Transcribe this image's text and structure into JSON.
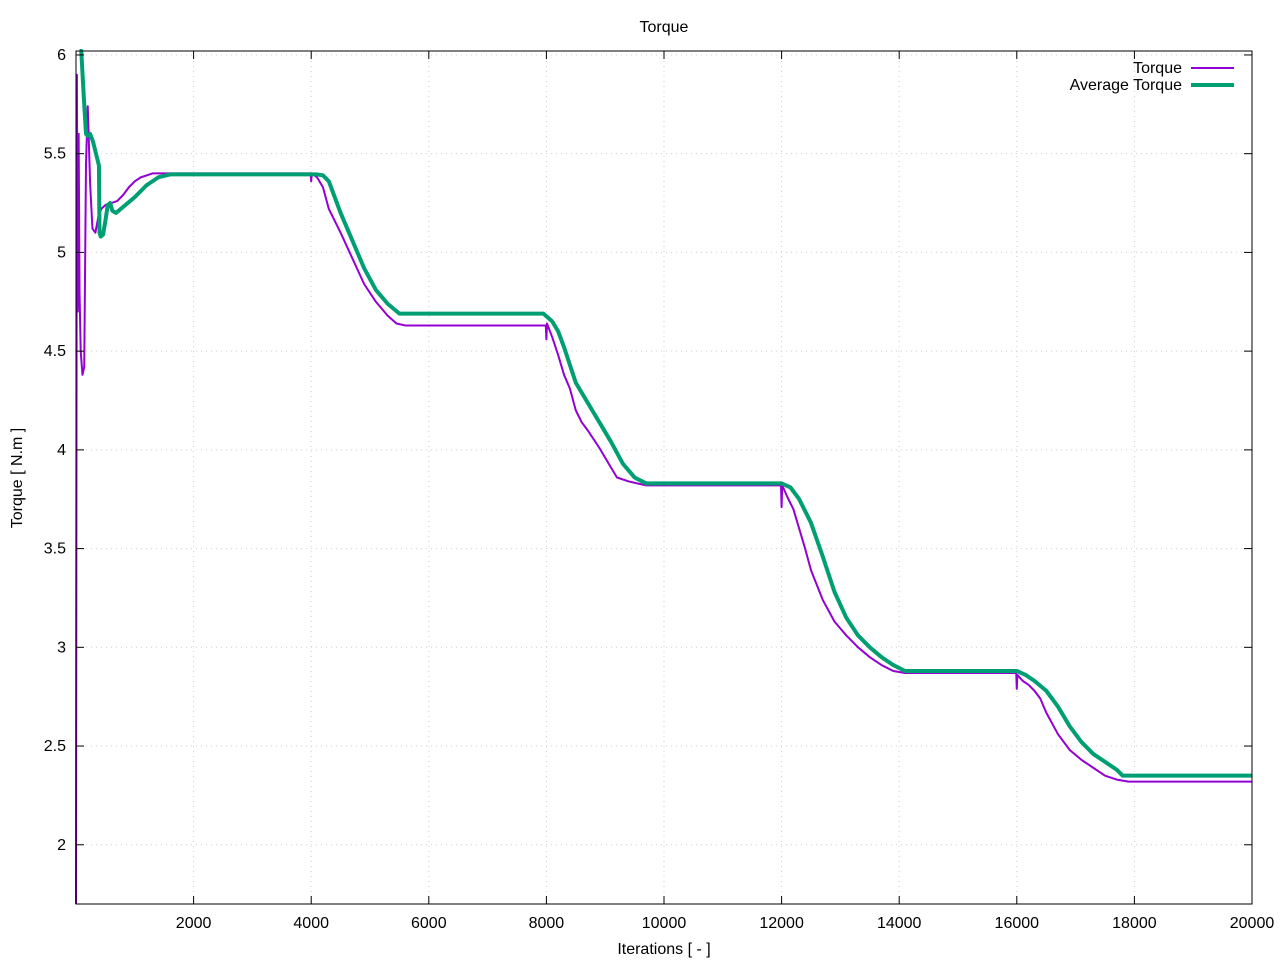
{
  "chart_data": {
    "type": "line",
    "title": "Torque",
    "xlabel": "Iterations [ - ]",
    "ylabel": "Torque [ N.m ]",
    "xlim": [
      0,
      20000
    ],
    "ylim": [
      1.7,
      6.02
    ],
    "x_ticks": [
      2000,
      4000,
      6000,
      8000,
      10000,
      12000,
      14000,
      16000,
      18000,
      20000
    ],
    "y_ticks": [
      2,
      2.5,
      3,
      3.5,
      4,
      4.5,
      5,
      5.5,
      6
    ],
    "grid": true,
    "legend_position": "top-right",
    "series": [
      {
        "name": "Torque",
        "color": "#9400d3",
        "line_width": 2,
        "points": [
          [
            0,
            1.7
          ],
          [
            15,
            5.9
          ],
          [
            30,
            4.7
          ],
          [
            45,
            5.6
          ],
          [
            60,
            4.8
          ],
          [
            80,
            4.5
          ],
          [
            110,
            4.38
          ],
          [
            140,
            4.42
          ],
          [
            170,
            5.45
          ],
          [
            200,
            5.74
          ],
          [
            240,
            5.35
          ],
          [
            280,
            5.12
          ],
          [
            330,
            5.1
          ],
          [
            380,
            5.18
          ],
          [
            430,
            5.22
          ],
          [
            500,
            5.24
          ],
          [
            600,
            5.25
          ],
          [
            700,
            5.26
          ],
          [
            800,
            5.29
          ],
          [
            900,
            5.33
          ],
          [
            1000,
            5.36
          ],
          [
            1100,
            5.38
          ],
          [
            1200,
            5.39
          ],
          [
            1300,
            5.4
          ],
          [
            1400,
            5.4
          ],
          [
            1600,
            5.4
          ],
          [
            2000,
            5.4
          ],
          [
            3000,
            5.4
          ],
          [
            3990,
            5.4
          ],
          [
            4000,
            5.36
          ],
          [
            4010,
            5.4
          ],
          [
            4100,
            5.38
          ],
          [
            4200,
            5.33
          ],
          [
            4300,
            5.22
          ],
          [
            4400,
            5.16
          ],
          [
            4500,
            5.1
          ],
          [
            4700,
            4.97
          ],
          [
            4900,
            4.84
          ],
          [
            5100,
            4.75
          ],
          [
            5300,
            4.68
          ],
          [
            5450,
            4.64
          ],
          [
            5600,
            4.63
          ],
          [
            7990,
            4.63
          ],
          [
            8000,
            4.56
          ],
          [
            8010,
            4.64
          ],
          [
            8100,
            4.57
          ],
          [
            8200,
            4.48
          ],
          [
            8300,
            4.38
          ],
          [
            8400,
            4.31
          ],
          [
            8500,
            4.2
          ],
          [
            8600,
            4.14
          ],
          [
            8700,
            4.1
          ],
          [
            8900,
            4.01
          ],
          [
            9100,
            3.91
          ],
          [
            9200,
            3.86
          ],
          [
            9400,
            3.84
          ],
          [
            9700,
            3.82
          ],
          [
            11990,
            3.82
          ],
          [
            12000,
            3.71
          ],
          [
            12010,
            3.82
          ],
          [
            12100,
            3.76
          ],
          [
            12200,
            3.7
          ],
          [
            12300,
            3.6
          ],
          [
            12400,
            3.5
          ],
          [
            12500,
            3.39
          ],
          [
            12700,
            3.24
          ],
          [
            12900,
            3.13
          ],
          [
            13100,
            3.06
          ],
          [
            13300,
            3.0
          ],
          [
            13500,
            2.95
          ],
          [
            13700,
            2.91
          ],
          [
            13900,
            2.88
          ],
          [
            14100,
            2.87
          ],
          [
            15990,
            2.87
          ],
          [
            16000,
            2.79
          ],
          [
            16010,
            2.86
          ],
          [
            16100,
            2.83
          ],
          [
            16200,
            2.81
          ],
          [
            16300,
            2.78
          ],
          [
            16400,
            2.74
          ],
          [
            16500,
            2.67
          ],
          [
            16700,
            2.56
          ],
          [
            16900,
            2.48
          ],
          [
            17100,
            2.43
          ],
          [
            17300,
            2.39
          ],
          [
            17500,
            2.35
          ],
          [
            17700,
            2.33
          ],
          [
            17900,
            2.32
          ],
          [
            20000,
            2.32
          ]
        ]
      },
      {
        "name": "Average Torque",
        "color": "#009e73",
        "line_width": 4,
        "points": [
          [
            60,
            6.02
          ],
          [
            90,
            6.02
          ],
          [
            130,
            5.8
          ],
          [
            170,
            5.6
          ],
          [
            200,
            5.59
          ],
          [
            240,
            5.6
          ],
          [
            290,
            5.56
          ],
          [
            340,
            5.5
          ],
          [
            390,
            5.44
          ],
          [
            400,
            5.1
          ],
          [
            420,
            5.08
          ],
          [
            460,
            5.09
          ],
          [
            500,
            5.16
          ],
          [
            540,
            5.24
          ],
          [
            580,
            5.25
          ],
          [
            620,
            5.21
          ],
          [
            680,
            5.2
          ],
          [
            800,
            5.23
          ],
          [
            1000,
            5.28
          ],
          [
            1200,
            5.34
          ],
          [
            1400,
            5.38
          ],
          [
            1600,
            5.395
          ],
          [
            2000,
            5.395
          ],
          [
            3000,
            5.395
          ],
          [
            4100,
            5.395
          ],
          [
            4200,
            5.39
          ],
          [
            4300,
            5.36
          ],
          [
            4400,
            5.28
          ],
          [
            4500,
            5.2
          ],
          [
            4700,
            5.06
          ],
          [
            4900,
            4.92
          ],
          [
            5100,
            4.81
          ],
          [
            5300,
            4.74
          ],
          [
            5500,
            4.69
          ],
          [
            7950,
            4.69
          ],
          [
            8100,
            4.65
          ],
          [
            8200,
            4.6
          ],
          [
            8300,
            4.52
          ],
          [
            8400,
            4.43
          ],
          [
            8500,
            4.34
          ],
          [
            8700,
            4.24
          ],
          [
            8900,
            4.14
          ],
          [
            9100,
            4.04
          ],
          [
            9300,
            3.93
          ],
          [
            9500,
            3.86
          ],
          [
            9700,
            3.83
          ],
          [
            12000,
            3.83
          ],
          [
            12150,
            3.81
          ],
          [
            12300,
            3.75
          ],
          [
            12500,
            3.63
          ],
          [
            12700,
            3.46
          ],
          [
            12900,
            3.28
          ],
          [
            13100,
            3.15
          ],
          [
            13300,
            3.06
          ],
          [
            13500,
            3.0
          ],
          [
            13700,
            2.95
          ],
          [
            13900,
            2.91
          ],
          [
            14100,
            2.88
          ],
          [
            16000,
            2.88
          ],
          [
            16150,
            2.86
          ],
          [
            16300,
            2.83
          ],
          [
            16500,
            2.78
          ],
          [
            16700,
            2.7
          ],
          [
            16900,
            2.6
          ],
          [
            17100,
            2.52
          ],
          [
            17300,
            2.46
          ],
          [
            17500,
            2.42
          ],
          [
            17700,
            2.38
          ],
          [
            17800,
            2.35
          ],
          [
            20000,
            2.35
          ]
        ]
      }
    ]
  }
}
